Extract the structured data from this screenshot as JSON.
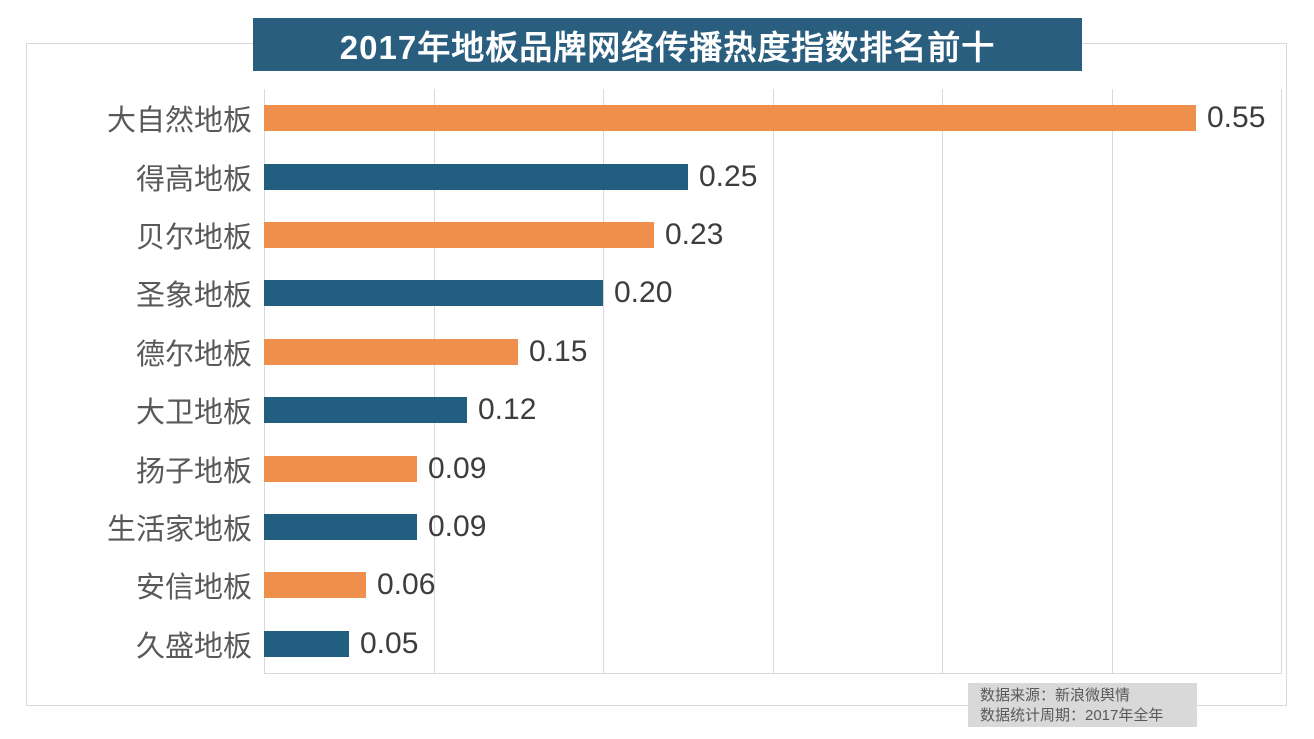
{
  "title": "2017年地板品牌网络传播热度指数排名前十",
  "colors": {
    "orange": "#ef8f4c",
    "blue": "#215e80",
    "banner": "#2a5e7f",
    "grid": "#d9d9d9",
    "category_label": "#595959",
    "value_label": "#3d3d3d",
    "source_box_bg": "#d9d9d9"
  },
  "chart_data": {
    "type": "bar",
    "orientation": "horizontal",
    "title": "2017年地板品牌网络传播热度指数排名前十",
    "categories": [
      "大自然地板",
      "得高地板",
      "贝尔地板",
      "圣象地板",
      "德尔地板",
      "大卫地板",
      "扬子地板",
      "生活家地板",
      "安信地板",
      "久盛地板"
    ],
    "values": [
      0.55,
      0.25,
      0.23,
      0.2,
      0.15,
      0.12,
      0.09,
      0.09,
      0.06,
      0.05
    ],
    "value_labels": [
      "0.55",
      "0.25",
      "0.23",
      "0.20",
      "0.15",
      "0.12",
      "0.09",
      "0.09",
      "0.06",
      "0.05"
    ],
    "bar_color_keys": [
      "orange",
      "blue",
      "orange",
      "blue",
      "orange",
      "blue",
      "orange",
      "blue",
      "orange",
      "blue"
    ],
    "xlim": [
      0,
      0.6
    ],
    "gridline_interval": 0.1,
    "grid": true,
    "legend": false,
    "value_labels_position": "end-of-bar"
  },
  "source_note": {
    "line1": "数据来源：新浪微舆情",
    "line2": "数据统计周期：2017年全年"
  }
}
